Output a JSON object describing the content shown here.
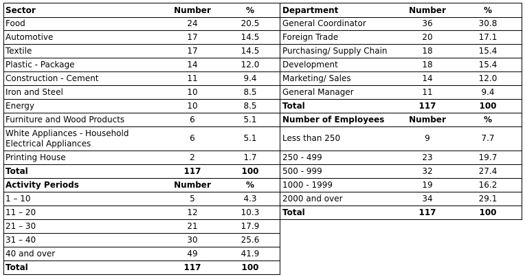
{
  "sector": {
    "headers": [
      "Sector",
      "Number",
      "%"
    ],
    "rows": [
      [
        "Food",
        "24",
        "20.5"
      ],
      [
        "Automotive",
        "17",
        "14.5"
      ],
      [
        "Textile",
        "17",
        "14.5"
      ],
      [
        "Plastic - Package",
        "14",
        "12.0"
      ],
      [
        "Construction - Cement",
        "11",
        "9.4"
      ],
      [
        "Iron and Steel",
        "10",
        "8.5"
      ],
      [
        "Energy",
        "10",
        "8.5"
      ],
      [
        "Furniture and Wood Products",
        "6",
        "5.1"
      ],
      [
        "White Appliances - Household Electrical Appliances",
        "6",
        "5.1"
      ],
      [
        "Printing House",
        "2",
        "1.7"
      ]
    ],
    "total": [
      "Total",
      "117",
      "100"
    ]
  },
  "activity": {
    "headers": [
      "Activity Periods",
      "Number",
      "%"
    ],
    "rows": [
      [
        "1 – 10",
        "5",
        "4.3"
      ],
      [
        "11 – 20",
        "12",
        "10.3"
      ],
      [
        "21 – 30",
        "21",
        "17.9"
      ],
      [
        "31 – 40",
        "30",
        "25.6"
      ],
      [
        "40 and over",
        "49",
        "41.9"
      ]
    ],
    "total": [
      "Total",
      "117",
      "100"
    ]
  },
  "department": {
    "headers": [
      "Department",
      "Number",
      "%"
    ],
    "rows": [
      [
        "General Coordinator",
        "36",
        "30.8"
      ],
      [
        "Foreign Trade",
        "20",
        "17.1"
      ],
      [
        "Purchasing/ Supply Chain",
        "18",
        "15.4"
      ],
      [
        "Development",
        "18",
        "15.4"
      ],
      [
        "Marketing/ Sales",
        "14",
        "12.0"
      ],
      [
        "General Manager",
        "11",
        "9.4"
      ]
    ],
    "total": [
      "Total",
      "117",
      "100"
    ]
  },
  "employees": {
    "headers": [
      "Number of Employees",
      "Number",
      "%"
    ],
    "rows": [
      [
        "Less than 250",
        "9",
        "7.7"
      ],
      [
        "250 - 499",
        "23",
        "19.7"
      ],
      [
        "500 - 999",
        "32",
        "27.4"
      ],
      [
        "1000 - 1999",
        "19",
        "16.2"
      ],
      [
        "2000 and over",
        "34",
        "29.1"
      ]
    ],
    "total": [
      "Total",
      "117",
      "100"
    ]
  }
}
